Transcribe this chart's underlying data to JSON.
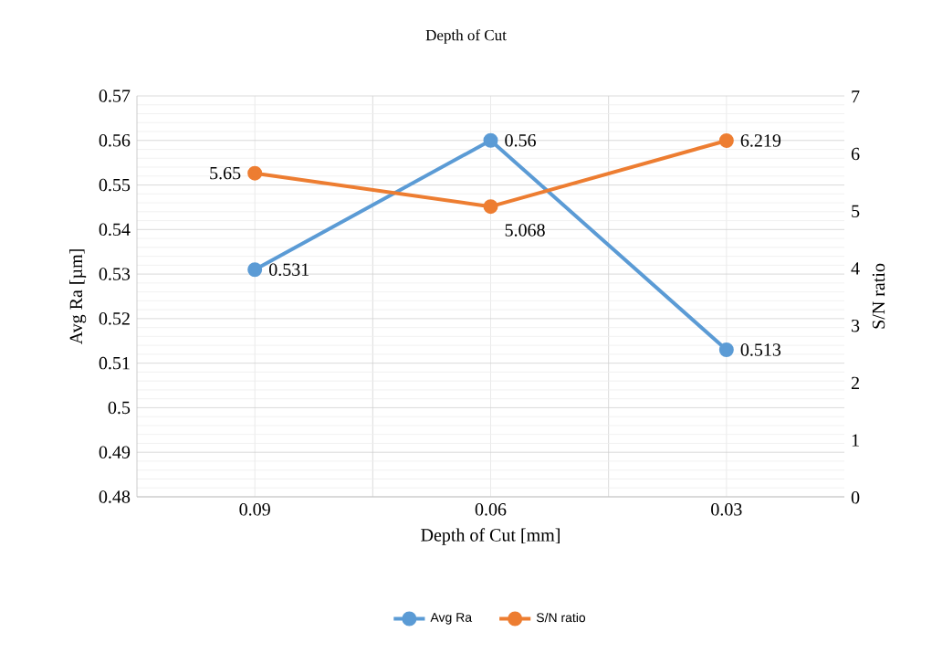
{
  "chart_data": {
    "type": "line",
    "title": "Depth of Cut",
    "xlabel": "Depth of Cut [mm]",
    "ylabel": "Avg Ra [µm]",
    "y2label": "S/N ratio",
    "categories": [
      "0.09",
      "0.06",
      "0.03"
    ],
    "series": [
      {
        "name": "Avg Ra",
        "color": "#5b9bd5",
        "values": [
          0.531,
          0.56,
          0.513
        ],
        "value_labels": [
          "0.531",
          "0.56",
          "0.513"
        ]
      },
      {
        "name": "S/N ratio",
        "color": "#ed7d31",
        "values": [
          5.65,
          5.068,
          6.219
        ],
        "value_labels": [
          "5.65",
          "5.068",
          "6.219"
        ],
        "axis": "y2"
      }
    ],
    "ylim": [
      0.48,
      0.57
    ],
    "yticks": [
      0.48,
      0.49,
      0.5,
      0.51,
      0.52,
      0.53,
      0.54,
      0.55,
      0.56,
      0.57
    ],
    "y2lim": [
      0,
      7
    ],
    "y2ticks": [
      0,
      1,
      2,
      3,
      4,
      5,
      6,
      7
    ],
    "grid": true,
    "legend": "bottom",
    "marker": "circle"
  }
}
